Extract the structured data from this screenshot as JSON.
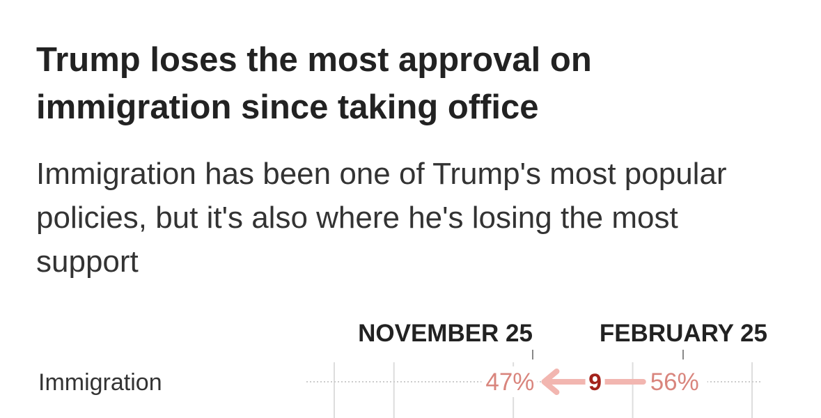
{
  "title": "Trump loses the most approval on immigration since taking office",
  "subtitle": "Immigration has been one of Trump's most popular policies, but it's also where he's losing the most support",
  "chart_data": {
    "type": "dot-arrow",
    "column_headers": [
      "NOVEMBER 25",
      "FEBRUARY 25"
    ],
    "rows": [
      {
        "label": "Immigration",
        "november_25": 47,
        "february_25": 56,
        "change": 9
      }
    ],
    "value_labels": {
      "november_25": "47%",
      "february_25": "56%"
    },
    "change_label": "9",
    "xlim": [
      30,
      65
    ],
    "gridlines": [
      35,
      45,
      55,
      65
    ],
    "colors": {
      "arrow": "#f2b6b0",
      "value_text": "#d9857d",
      "change_text": "#a3221b",
      "grid": "#dddddd"
    }
  }
}
